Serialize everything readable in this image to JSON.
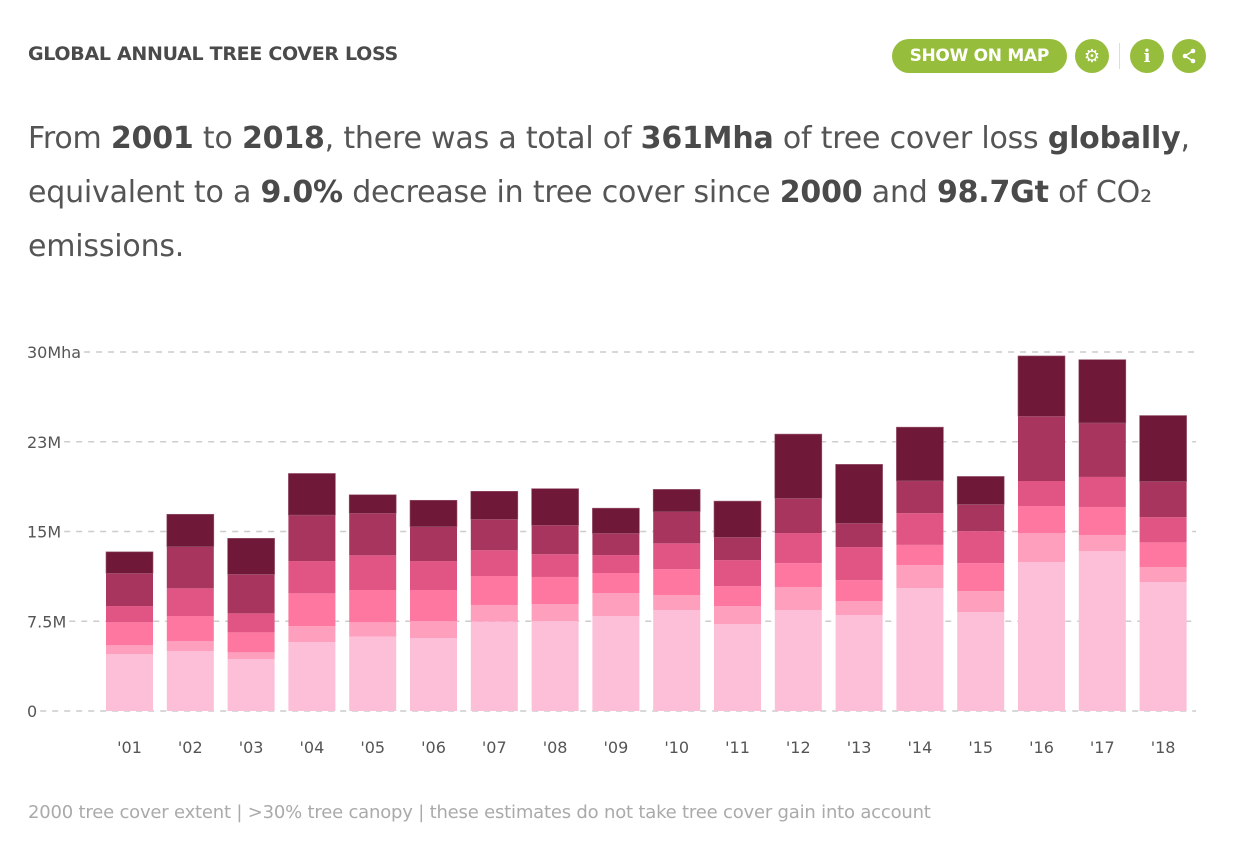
{
  "header": {
    "title": "GLOBAL ANNUAL TREE COVER LOSS",
    "show_on_map_label": "SHOW ON MAP",
    "icons": [
      "gear-icon",
      "info-icon",
      "share-icon"
    ],
    "accent_color": "#97bd3d"
  },
  "summary": {
    "t1": "From ",
    "b1": "2001",
    "t2": " to ",
    "b2": "2018",
    "t3": ", there was a total of ",
    "b3": "361Mha",
    "t4": " of tree cover loss ",
    "b4": "globally",
    "t5": ", equivalent to a ",
    "b5": "9.0%",
    "t6": " decrease in tree cover since ",
    "b6": "2000",
    "t7": " and ",
    "b7": "98.7Gt",
    "t8": " of CO₂ emissions."
  },
  "chart_data": {
    "type": "bar",
    "stacked": true,
    "categories": [
      "'01",
      "'02",
      "'03",
      "'04",
      "'05",
      "'06",
      "'07",
      "'08",
      "'09",
      "'10",
      "'11",
      "'12",
      "'13",
      "'14",
      "'15",
      "'16",
      "'17",
      "'18"
    ],
    "y_ticks": [
      {
        "value": 0,
        "label": "0"
      },
      {
        "value": 7.5,
        "label": "7.5M"
      },
      {
        "value": 15,
        "label": "15M"
      },
      {
        "value": 22.5,
        "label": "23M"
      },
      {
        "value": 30,
        "label": "30Mha"
      }
    ],
    "ylim": [
      0,
      30
    ],
    "grid": true,
    "legend": "none",
    "series": [
      {
        "color": "#fdbfd7",
        "values": [
          4.74,
          5.01,
          4.34,
          5.76,
          6.21,
          6.1,
          7.46,
          7.52,
          7.94,
          8.44,
          7.27,
          8.44,
          8.02,
          10.28,
          8.27,
          12.45,
          13.37,
          10.78
        ]
      },
      {
        "color": "#fd9fbd",
        "values": [
          0.75,
          0.84,
          0.56,
          1.34,
          1.2,
          1.42,
          1.4,
          1.42,
          1.92,
          1.25,
          1.5,
          1.92,
          1.17,
          1.9,
          1.75,
          2.42,
          1.34,
          1.25
        ]
      },
      {
        "color": "#fe77a1",
        "values": [
          1.92,
          2.09,
          1.67,
          2.73,
          2.7,
          2.59,
          2.42,
          2.26,
          1.67,
          2.17,
          1.67,
          2.0,
          1.75,
          1.7,
          2.34,
          2.26,
          2.34,
          2.06
        ]
      },
      {
        "color": "#e05584",
        "values": [
          1.36,
          2.31,
          1.59,
          2.7,
          2.9,
          2.42,
          2.15,
          1.9,
          1.5,
          2.15,
          2.17,
          2.51,
          2.76,
          2.65,
          2.67,
          2.09,
          2.51,
          2.11
        ]
      },
      {
        "color": "#a8355d",
        "values": [
          2.73,
          3.48,
          3.26,
          3.84,
          3.51,
          2.87,
          2.59,
          2.42,
          1.81,
          2.64,
          1.9,
          2.9,
          1.98,
          2.7,
          2.23,
          5.41,
          4.51,
          2.98
        ]
      },
      {
        "color": "#6f1838",
        "values": [
          1.8,
          2.71,
          3.01,
          3.48,
          1.55,
          2.21,
          2.34,
          3.06,
          2.11,
          1.87,
          3.03,
          5.37,
          4.93,
          4.49,
          2.34,
          5.04,
          5.29,
          5.51
        ]
      }
    ]
  },
  "footer": {
    "note": "2000 tree cover extent | >30% tree canopy | these estimates do not take tree cover gain into account"
  }
}
